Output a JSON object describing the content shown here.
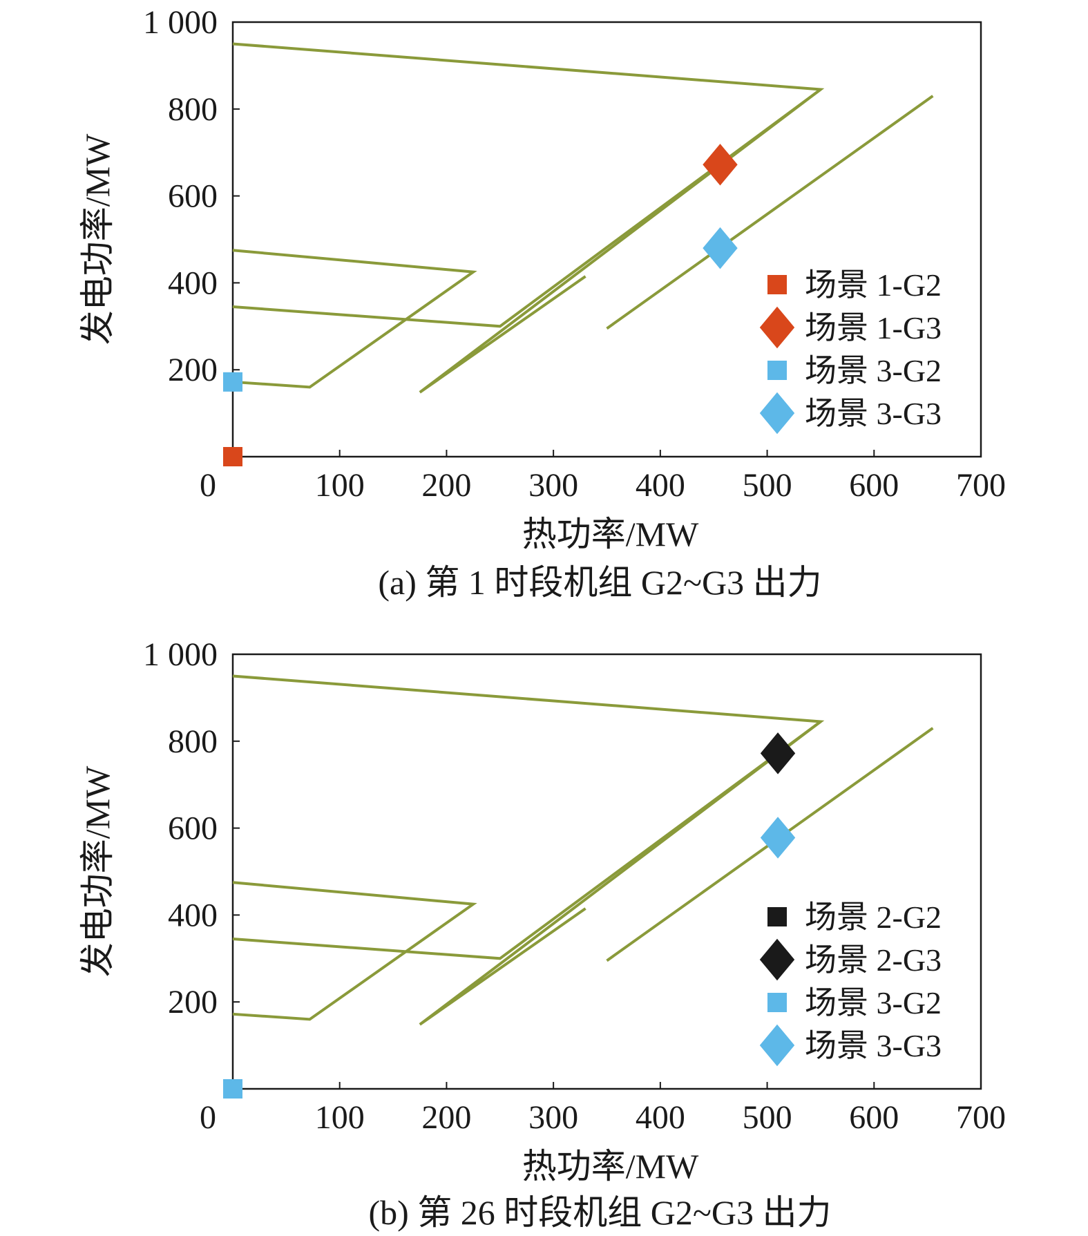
{
  "chart_data": [
    {
      "type": "scatter",
      "caption": "(a) 第 1 时段机组 G2~G3 出力",
      "xlabel": "热功率/MW",
      "ylabel": "发电功率/MW",
      "xlim": [
        0,
        700
      ],
      "ylim": [
        0,
        1000
      ],
      "xticks": [
        "0",
        "100",
        "200",
        "300",
        "400",
        "500",
        "600",
        "700"
      ],
      "yticks": [
        "1 000",
        "800",
        "600",
        "400",
        "200"
      ],
      "grid": false,
      "legend_position": "bottom-right",
      "region_color": "#8a9a3a",
      "regions": [
        {
          "points": [
            [
              0,
              950
            ],
            [
              550,
              845
            ],
            [
              175,
              148
            ],
            [
              330,
              415
            ]
          ]
        },
        {
          "points": [
            [
              0,
              475
            ],
            [
              225,
              425
            ],
            [
              72,
              160
            ],
            [
              0,
              172
            ]
          ]
        },
        {
          "points": [
            [
              0,
              345
            ],
            [
              250,
              300
            ],
            [
              550,
              845
            ]
          ]
        },
        {
          "points": [
            [
              350,
              295
            ],
            [
              655,
              830
            ]
          ]
        }
      ],
      "series": [
        {
          "name": "场景 1-G2",
          "marker": "square",
          "color": "#d9471b",
          "x": [
            0
          ],
          "y": [
            0
          ]
        },
        {
          "name": "场景 1-G3",
          "marker": "diamond",
          "color": "#d9471b",
          "x": [
            456
          ],
          "y": [
            672
          ]
        },
        {
          "name": "场景 3-G2",
          "marker": "square",
          "color": "#5db8e8",
          "x": [
            0
          ],
          "y": [
            172
          ]
        },
        {
          "name": "场景 3-G3",
          "marker": "diamond",
          "color": "#5db8e8",
          "x": [
            456
          ],
          "y": [
            480
          ]
        }
      ]
    },
    {
      "type": "scatter",
      "caption": "(b) 第 26 时段机组 G2~G3 出力",
      "xlabel": "热功率/MW",
      "ylabel": "发电功率/MW",
      "xlim": [
        0,
        700
      ],
      "ylim": [
        0,
        1000
      ],
      "xticks": [
        "0",
        "100",
        "200",
        "300",
        "400",
        "500",
        "600",
        "700"
      ],
      "yticks": [
        "1 000",
        "800",
        "600",
        "400",
        "200"
      ],
      "grid": false,
      "legend_position": "bottom-right",
      "region_color": "#8a9a3a",
      "regions": [
        {
          "points": [
            [
              0,
              950
            ],
            [
              550,
              845
            ],
            [
              175,
              148
            ],
            [
              330,
              415
            ]
          ]
        },
        {
          "points": [
            [
              0,
              475
            ],
            [
              225,
              425
            ],
            [
              72,
              160
            ],
            [
              0,
              172
            ]
          ]
        },
        {
          "points": [
            [
              0,
              345
            ],
            [
              250,
              300
            ],
            [
              550,
              845
            ]
          ]
        },
        {
          "points": [
            [
              350,
              295
            ],
            [
              655,
              830
            ]
          ]
        }
      ],
      "series": [
        {
          "name": "场景 2-G2",
          "marker": "square",
          "color": "#1a1a1a",
          "x": [],
          "y": []
        },
        {
          "name": "场景 2-G3",
          "marker": "diamond",
          "color": "#1a1a1a",
          "x": [
            510
          ],
          "y": [
            772
          ]
        },
        {
          "name": "场景 3-G2",
          "marker": "square",
          "color": "#5db8e8",
          "x": [
            0
          ],
          "y": [
            0
          ]
        },
        {
          "name": "场景 3-G3",
          "marker": "diamond",
          "color": "#5db8e8",
          "x": [
            510
          ],
          "y": [
            578
          ]
        }
      ]
    }
  ]
}
